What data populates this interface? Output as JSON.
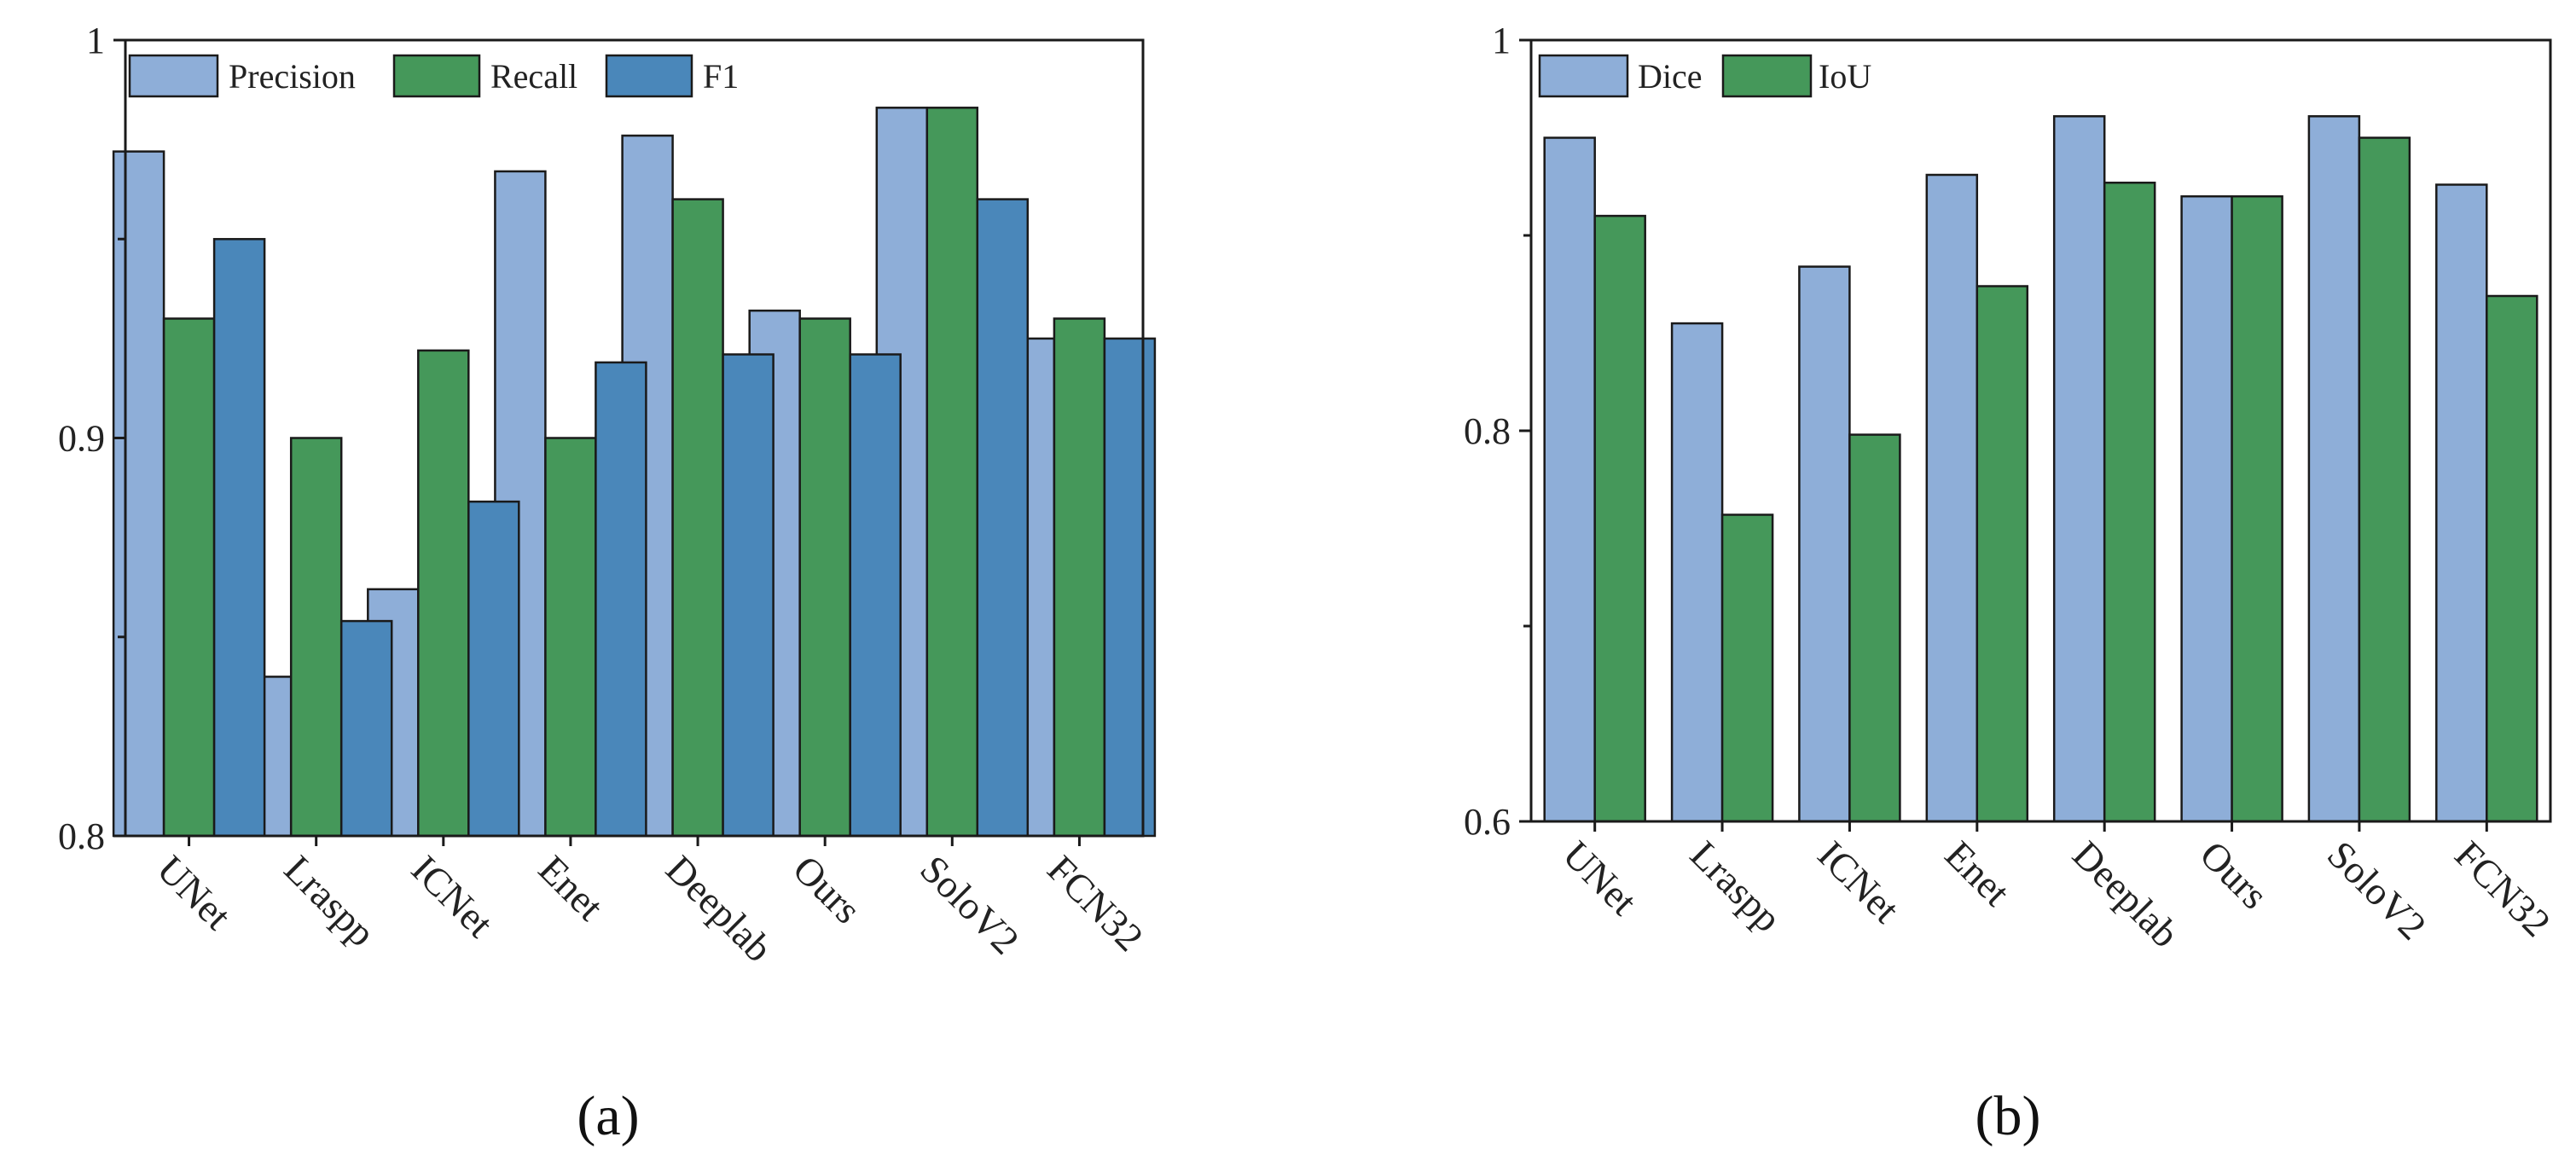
{
  "colors": {
    "precision": "#8eaed8",
    "recall": "#45985a",
    "f1": "#4a87ba",
    "dice": "#8eaed8",
    "iou": "#45985a",
    "edge": "#1a1a1a"
  },
  "chart_data": [
    {
      "type": "bar",
      "caption": "(a)",
      "title": "",
      "xlabel": "",
      "ylabel": "",
      "ylim": [
        0.8,
        1.0
      ],
      "yticks": [
        0.8,
        0.9,
        1.0
      ],
      "ytick_labels": [
        "0.8",
        "0.9",
        "1"
      ],
      "categories": [
        "UNet",
        "Lraspp",
        "ICNet",
        "Enet",
        "Deeplab",
        "Ours",
        "SoloV2",
        "FCN32"
      ],
      "legend_position": "top-left",
      "series": [
        {
          "name": "Precision",
          "color_key": "precision",
          "values": [
            0.972,
            0.84,
            0.862,
            0.967,
            0.976,
            0.932,
            0.983,
            0.925
          ]
        },
        {
          "name": "Recall",
          "color_key": "recall",
          "values": [
            0.93,
            0.9,
            0.922,
            0.9,
            0.96,
            0.93,
            0.983,
            0.93
          ]
        },
        {
          "name": "F1",
          "color_key": "f1",
          "values": [
            0.95,
            0.854,
            0.884,
            0.919,
            0.921,
            0.921,
            0.96,
            0.925
          ]
        }
      ]
    },
    {
      "type": "bar",
      "caption": "(b)",
      "title": "",
      "xlabel": "",
      "ylabel": "",
      "ylim": [
        0.6,
        1.0
      ],
      "yticks": [
        0.6,
        0.8,
        1.0
      ],
      "ytick_labels": [
        "0.6",
        "0.8",
        "1"
      ],
      "categories": [
        "UNet",
        "Lraspp",
        "ICNet",
        "Enet",
        "Deeplab",
        "Ours",
        "SoloV2",
        "FCN32"
      ],
      "legend_position": "top-left",
      "series": [
        {
          "name": "Dice",
          "color_key": "dice",
          "values": [
            0.95,
            0.855,
            0.884,
            0.931,
            0.961,
            0.92,
            0.961,
            0.926
          ]
        },
        {
          "name": "IoU",
          "color_key": "iou",
          "values": [
            0.91,
            0.757,
            0.798,
            0.874,
            0.927,
            0.92,
            0.95,
            0.869
          ]
        }
      ]
    }
  ]
}
